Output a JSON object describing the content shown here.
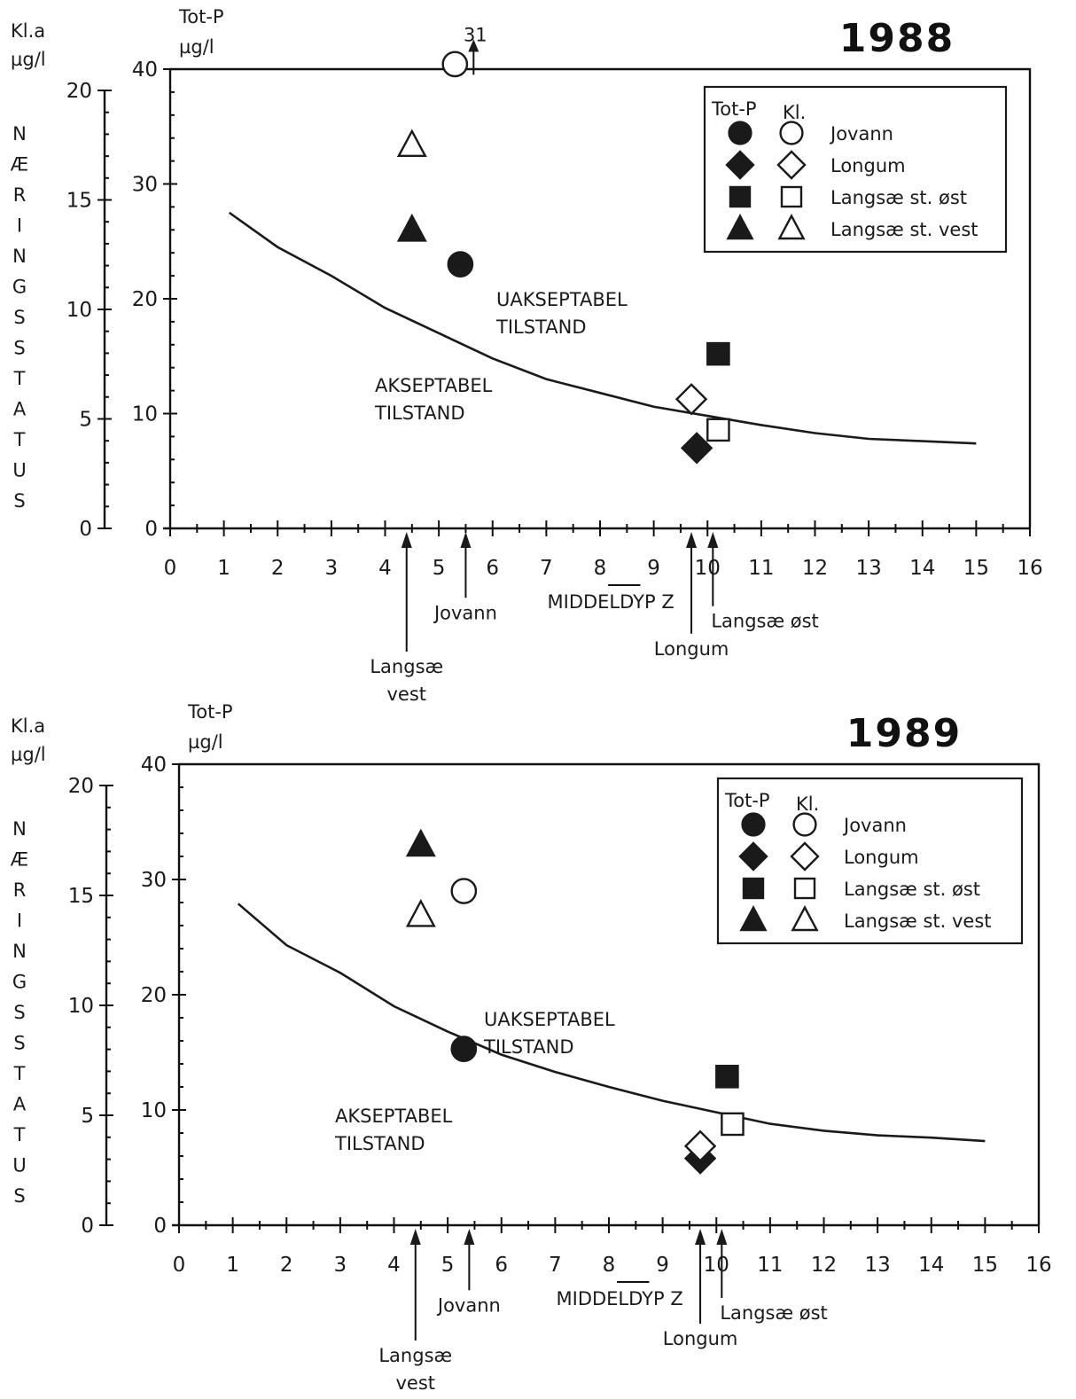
{
  "chart_data": [
    {
      "type": "scatter",
      "title": "1988",
      "xlabel": "MIDDELDYP Z",
      "y_left_label": [
        "Kl.a",
        "µg/l"
      ],
      "y_label": [
        "Tot-P",
        "µg/l"
      ],
      "vertical_label": [
        "N",
        "Æ",
        "R",
        "I",
        "N",
        "G",
        "S",
        "S",
        "T",
        "A",
        "T",
        "U",
        "S"
      ],
      "xlim": [
        0,
        16
      ],
      "ylim_totp": [
        0,
        40
      ],
      "ylim_kla": [
        0,
        20
      ],
      "x_ticks": [
        "0",
        "1",
        "2",
        "3",
        "4",
        "5",
        "6",
        "7",
        "8",
        "9",
        "10",
        "11",
        "12",
        "13",
        "14",
        "15",
        "16"
      ],
      "totp_ticks": [
        "0",
        "10",
        "20",
        "30",
        "40"
      ],
      "kla_ticks": [
        "0",
        "5",
        "10",
        "15",
        "20"
      ],
      "legend": {
        "header_totp": "Tot-P",
        "header_kl": "Kl.",
        "entries": [
          "Jovann",
          "Longum",
          "Langsæ st. øst",
          "Langsæ st. vest"
        ]
      },
      "region_labels": {
        "above": [
          "UAKSEPTABEL",
          "TILSTAND"
        ],
        "below": [
          "AKSEPTABEL",
          "TILSTAND"
        ]
      },
      "curve": {
        "x": [
          1.1,
          2,
          3,
          4,
          5,
          6,
          7,
          8,
          9,
          10,
          11,
          12,
          13,
          14,
          15
        ],
        "totp": [
          27.5,
          24.5,
          22,
          19.2,
          17,
          14.8,
          13,
          11.8,
          10.6,
          9.8,
          9,
          8.3,
          7.8,
          7.6,
          7.4
        ]
      },
      "points": [
        {
          "lake": "Jovann",
          "measure": "Tot-P",
          "x": 5.4,
          "totp": 23
        },
        {
          "lake": "Jovann",
          "measure": "Kl.a",
          "x": 5.3,
          "kla": 21.2,
          "off_scale_value": "31"
        },
        {
          "lake": "Longum",
          "measure": "Tot-P",
          "x": 9.8,
          "totp": 7
        },
        {
          "lake": "Longum",
          "measure": "Kl.a",
          "x": 9.7,
          "kla": 5.9
        },
        {
          "lake": "Langsæ st. øst",
          "measure": "Tot-P",
          "x": 10.2,
          "totp": 15.2
        },
        {
          "lake": "Langsæ st. øst",
          "measure": "Kl.a",
          "x": 10.2,
          "kla": 4.5
        },
        {
          "lake": "Langsæ st. vest",
          "measure": "Tot-P",
          "x": 4.5,
          "totp": 26
        },
        {
          "lake": "Langsæ st. vest",
          "measure": "Kl.a",
          "x": 4.5,
          "kla": 17.5
        }
      ],
      "depth_markers": [
        {
          "label": [
            "Langsæ",
            "vest"
          ],
          "x": 4.4
        },
        {
          "label": [
            "Jovann"
          ],
          "x": 5.5
        },
        {
          "label": [
            "Longum"
          ],
          "x": 9.7
        },
        {
          "label": [
            "Langsæ øst"
          ],
          "x": 10.1
        }
      ]
    },
    {
      "type": "scatter",
      "title": "1989",
      "xlabel": "MIDDELDYP Z",
      "y_left_label": [
        "Kl.a",
        "µg/l"
      ],
      "y_label": [
        "Tot-P",
        "µg/l"
      ],
      "vertical_label": [
        "N",
        "Æ",
        "R",
        "I",
        "N",
        "G",
        "S",
        "S",
        "T",
        "A",
        "T",
        "U",
        "S"
      ],
      "xlim": [
        0,
        16
      ],
      "ylim_totp": [
        0,
        40
      ],
      "ylim_kla": [
        0,
        20
      ],
      "x_ticks": [
        "0",
        "1",
        "2",
        "3",
        "4",
        "5",
        "6",
        "7",
        "8",
        "9",
        "10",
        "11",
        "12",
        "13",
        "14",
        "15",
        "16"
      ],
      "totp_ticks": [
        "0",
        "10",
        "20",
        "30",
        "40"
      ],
      "kla_ticks": [
        "0",
        "5",
        "10",
        "15",
        "20"
      ],
      "legend": {
        "header_totp": "Tot-P",
        "header_kl": "Kl.",
        "entries": [
          "Jovann",
          "Longum",
          "Langsæ st. øst",
          "Langsæ st. vest"
        ]
      },
      "region_labels": {
        "above": [
          "UAKSEPTABEL",
          "TILSTAND"
        ],
        "below": [
          "AKSEPTABEL",
          "TILSTAND"
        ]
      },
      "curve": {
        "x": [
          1.1,
          2,
          3,
          4,
          5,
          6,
          7,
          8,
          9,
          10,
          11,
          12,
          13,
          14,
          15
        ],
        "totp": [
          27.9,
          24.3,
          21.9,
          19,
          16.8,
          14.8,
          13.3,
          12,
          10.8,
          9.8,
          8.8,
          8.2,
          7.8,
          7.6,
          7.3
        ]
      },
      "points": [
        {
          "lake": "Jovann",
          "measure": "Tot-P",
          "x": 5.3,
          "totp": 15.3
        },
        {
          "lake": "Jovann",
          "measure": "Kl.a",
          "x": 5.3,
          "kla": 15.2
        },
        {
          "lake": "Longum",
          "measure": "Tot-P",
          "x": 9.7,
          "totp": 5.8
        },
        {
          "lake": "Longum",
          "measure": "Kl.a",
          "x": 9.7,
          "kla": 3.6
        },
        {
          "lake": "Langsæ st. øst",
          "measure": "Tot-P",
          "x": 10.2,
          "totp": 12.9
        },
        {
          "lake": "Langsæ st. øst",
          "measure": "Kl.a",
          "x": 10.3,
          "kla": 4.6
        },
        {
          "lake": "Langsæ st. vest",
          "measure": "Tot-P",
          "x": 4.5,
          "totp": 33
        },
        {
          "lake": "Langsæ st. vest",
          "measure": "Kl.a",
          "x": 4.5,
          "kla": 14.1
        }
      ],
      "depth_markers": [
        {
          "label": [
            "Langsæ",
            "vest"
          ],
          "x": 4.4
        },
        {
          "label": [
            "Jovann"
          ],
          "x": 5.4
        },
        {
          "label": [
            "Longum"
          ],
          "x": 9.7
        },
        {
          "label": [
            "Langsæ øst"
          ],
          "x": 10.1
        }
      ]
    }
  ]
}
